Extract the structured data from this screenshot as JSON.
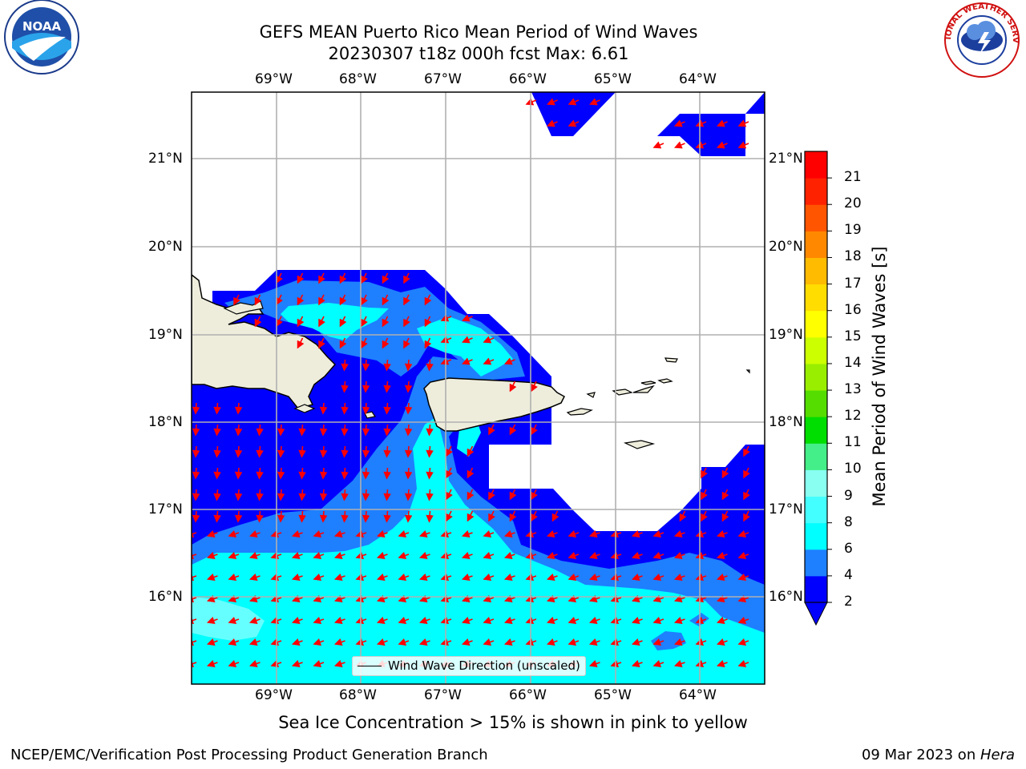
{
  "title": {
    "line1": "GEFS MEAN Puerto Rico Mean Period of Wind Waves",
    "line2": "20230307 t18z 000h fcst   Max: 6.61"
  },
  "logos": {
    "left": "NOAA",
    "right": "NATIONAL WEATHER SERVICE"
  },
  "axes": {
    "lon_labels": [
      "69°W",
      "68°W",
      "67°W",
      "66°W",
      "65°W",
      "64°W"
    ],
    "lat_labels": [
      "21°N",
      "20°N",
      "19°N",
      "18°N",
      "17°N",
      "16°N"
    ],
    "lon_values": [
      -69,
      -68,
      -67,
      -66,
      -65,
      -64
    ],
    "lat_values": [
      21,
      20,
      19,
      18,
      17,
      16
    ],
    "extent": {
      "lon": [
        -70,
        -63.25
      ],
      "lat": [
        15,
        21.75
      ]
    },
    "grid": true
  },
  "legend": {
    "label": "Wind Wave Direction (unscaled)"
  },
  "colorbar": {
    "label": "Mean Period of Wind Waves [s]",
    "ticks": [
      "2",
      "4",
      "6",
      "8",
      "9",
      "10",
      "11",
      "12",
      "13",
      "14",
      "15",
      "16",
      "17",
      "18",
      "19",
      "20",
      "21"
    ],
    "colors": [
      "#0000ff",
      "#1e7fff",
      "#00ffff",
      "#44ffff",
      "#88fff0",
      "#44ee88",
      "#00dd00",
      "#55dd00",
      "#99ee00",
      "#ccff00",
      "#ffff00",
      "#ffdd00",
      "#ffbb00",
      "#ff8800",
      "#ff5500",
      "#ff2200",
      "#ff0000"
    ],
    "extend": "min"
  },
  "chart_data": {
    "type": "heatmap",
    "variable": "Mean Period of Wind Waves [s]",
    "max": 6.61,
    "levels": [
      2,
      4,
      6,
      8
    ],
    "arrows": "red wind wave direction arrows"
  },
  "note": "Sea Ice Concentration > 15% is shown in pink to yellow",
  "footer": {
    "left": "NCEP/EMC/Verification Post Processing Product Generation Branch",
    "date": "09 Mar 2023 on ",
    "machine": "Hera"
  }
}
